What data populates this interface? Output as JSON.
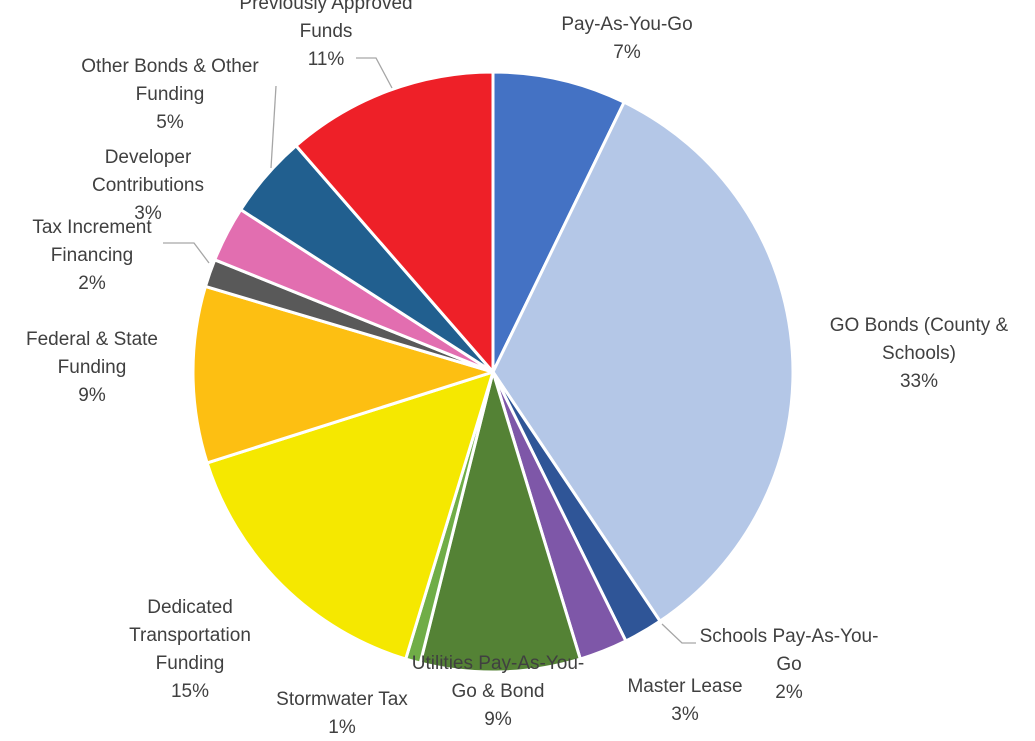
{
  "chart_data": {
    "type": "pie",
    "title": "",
    "legend": "none",
    "start_angle_deg": 0,
    "direction": "clockwise",
    "slices": [
      {
        "name": "Pay-As-You-Go",
        "label_lines": [
          "Pay-As-You-Go"
        ],
        "percent_label": "7%",
        "value": 7.2,
        "color": "#4472C4"
      },
      {
        "name": "GO Bonds (County & Schools)",
        "label_lines": [
          "GO Bonds (County &",
          "Schools)"
        ],
        "percent_label": "33%",
        "value": 33.4,
        "color": "#B4C7E7"
      },
      {
        "name": "Schools Pay-As-You-Go",
        "label_lines": [
          "Schools Pay-As-You-",
          "Go"
        ],
        "percent_label": "2%",
        "value": 2.1,
        "color": "#2F5597"
      },
      {
        "name": "Master Lease",
        "label_lines": [
          "Master Lease"
        ],
        "percent_label": "3%",
        "value": 2.6,
        "color": "#7E57A8"
      },
      {
        "name": "Utilities Pay-As-You-Go & Bond",
        "label_lines": [
          "Utilities Pay-As-You-",
          "Go & Bond"
        ],
        "percent_label": "9%",
        "value": 8.6,
        "color": "#548235"
      },
      {
        "name": "Stormwater Tax",
        "label_lines": [
          "Stormwater Tax"
        ],
        "percent_label": "1%",
        "value": 0.8,
        "color": "#70AD47"
      },
      {
        "name": "Dedicated Transportation Funding",
        "label_lines": [
          "Dedicated",
          "Transportation",
          "Funding"
        ],
        "percent_label": "15%",
        "value": 15.4,
        "color": "#F5E800"
      },
      {
        "name": "Federal & State Funding",
        "label_lines": [
          "Federal & State",
          "Funding"
        ],
        "percent_label": "9%",
        "value": 9.5,
        "color": "#FDBF12"
      },
      {
        "name": "Tax Increment Financing",
        "label_lines": [
          "Tax Increment",
          "Financing"
        ],
        "percent_label": "2%",
        "value": 1.5,
        "color": "#595959"
      },
      {
        "name": "Developer Contributions",
        "label_lines": [
          "Developer",
          "Contributions"
        ],
        "percent_label": "3%",
        "value": 3.0,
        "color": "#E26EB0"
      },
      {
        "name": "Other Bonds & Other Funding",
        "label_lines": [
          "Other Bonds & Other",
          "Funding"
        ],
        "percent_label": "5%",
        "value": 4.5,
        "color": "#215F8F"
      },
      {
        "name": "Previously Approved Funds",
        "label_lines": [
          "Previously Approved",
          "Funds"
        ],
        "percent_label": "11%",
        "value": 11.4,
        "color": "#EE2028"
      }
    ]
  }
}
